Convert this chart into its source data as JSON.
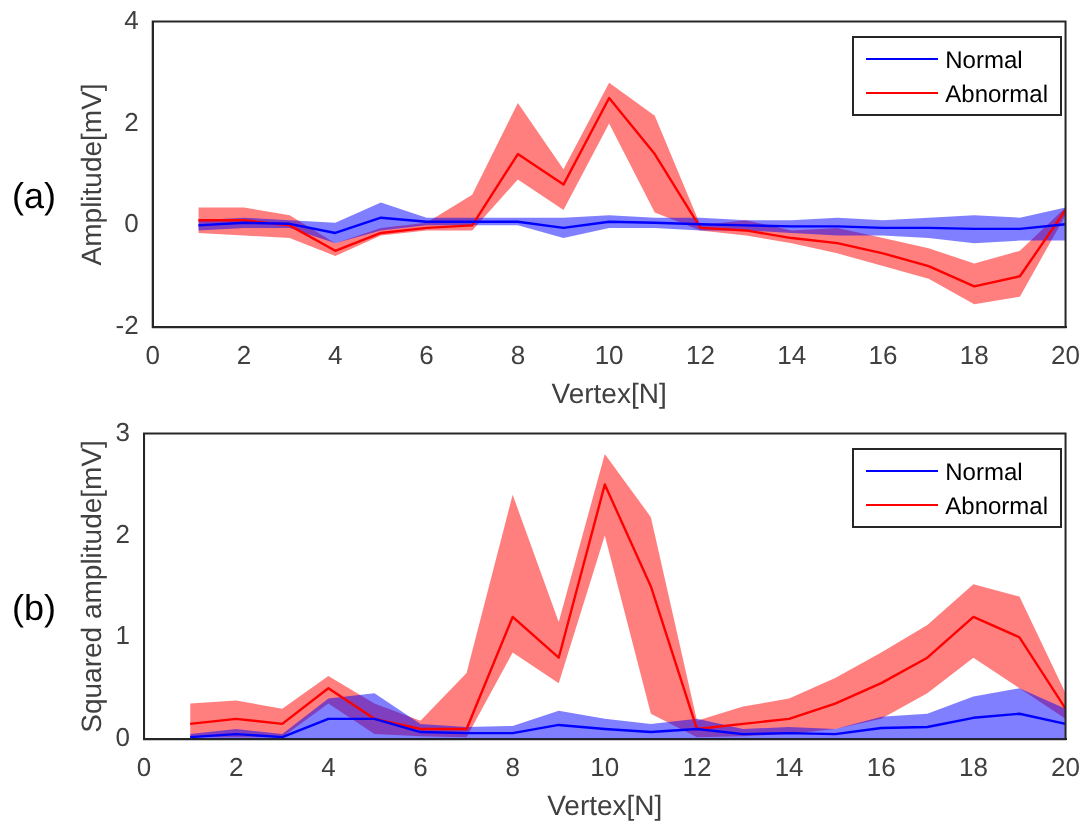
{
  "chart_data": [
    {
      "type": "line",
      "xlabel": "Vertex[N]",
      "ylabel": "Amplitude[mV]",
      "annotations": [
        "(a)"
      ],
      "legend": "top right",
      "x": [
        1,
        2,
        3,
        4,
        5,
        6,
        7,
        8,
        9,
        10,
        11,
        12,
        13,
        14,
        15,
        16,
        17,
        18,
        19,
        20
      ],
      "xlim": [
        0,
        20
      ],
      "xticks": [
        0,
        2,
        4,
        6,
        8,
        10,
        12,
        14,
        16,
        18,
        20
      ],
      "ylim": [
        -2,
        4
      ],
      "yticks": [
        -2,
        0,
        2,
        4
      ],
      "series": [
        {
          "name": "Normal",
          "color": "#0000ff",
          "values": [
            0,
            0.05,
            0.03,
            -0.15,
            0.15,
            0.07,
            0.07,
            0.07,
            -0.05,
            0.07,
            0.05,
            0.02,
            0,
            -0.02,
            -0.02,
            -0.05,
            -0.05,
            -0.07,
            -0.07,
            0.02
          ],
          "lower": [
            -0.1,
            -0.05,
            -0.05,
            -0.35,
            -0.1,
            0,
            0,
            0,
            -0.25,
            -0.05,
            -0.05,
            -0.1,
            -0.1,
            -0.15,
            -0.2,
            -0.2,
            -0.25,
            -0.35,
            -0.3,
            -0.3
          ],
          "upper": [
            0.1,
            0.15,
            0.1,
            0.05,
            0.45,
            0.15,
            0.15,
            0.15,
            0.15,
            0.2,
            0.15,
            0.15,
            0.1,
            0.1,
            0.15,
            0.1,
            0.15,
            0.2,
            0.15,
            0.35
          ]
        },
        {
          "name": "Abnormal",
          "color": "#ff0000",
          "values": [
            0.1,
            0.1,
            0,
            -0.5,
            -0.15,
            -0.05,
            0,
            1.4,
            0.8,
            2.5,
            1.4,
            -0.05,
            -0.1,
            -0.25,
            -0.35,
            -0.55,
            -0.8,
            -1.2,
            -1,
            0.3
          ],
          "lower": [
            -0.15,
            -0.2,
            -0.25,
            -0.6,
            -0.2,
            -0.1,
            -0.1,
            0.9,
            0.3,
            2,
            0.25,
            -0.1,
            -0.2,
            -0.35,
            -0.55,
            -0.8,
            -1.05,
            -1.55,
            -1.4,
            0.2
          ],
          "upper": [
            0.35,
            0.35,
            0.2,
            -0.35,
            -0.05,
            0.05,
            0.6,
            2.4,
            1.1,
            2.8,
            2.15,
            0,
            0.1,
            -0.1,
            -0.05,
            -0.25,
            -0.45,
            -0.75,
            -0.5,
            0.35
          ]
        }
      ]
    },
    {
      "type": "line",
      "xlabel": "Vertex[N]",
      "ylabel": "Squared amplitude[mV]",
      "annotations": [
        "(b)"
      ],
      "legend": "top right",
      "x": [
        1,
        2,
        3,
        4,
        5,
        6,
        7,
        8,
        9,
        10,
        11,
        12,
        13,
        14,
        15,
        16,
        17,
        18,
        19,
        20
      ],
      "xlim": [
        0,
        20
      ],
      "xticks": [
        0,
        2,
        4,
        6,
        8,
        10,
        12,
        14,
        16,
        18,
        20
      ],
      "ylim": [
        0,
        3
      ],
      "yticks": [
        0,
        1,
        2,
        3
      ],
      "series": [
        {
          "name": "Normal",
          "color": "#0000ff",
          "values": [
            0.02,
            0.05,
            0.02,
            0.2,
            0.2,
            0.07,
            0.06,
            0.06,
            0.14,
            0.1,
            0.07,
            0.1,
            0.05,
            0.06,
            0.05,
            0.11,
            0.12,
            0.21,
            0.25,
            0.15
          ],
          "lower": [
            0,
            0,
            0,
            0,
            0,
            0,
            0,
            0,
            0,
            0,
            0,
            0,
            0,
            0,
            0,
            0,
            0,
            0,
            0,
            0
          ],
          "upper": [
            0.05,
            0.1,
            0.05,
            0.4,
            0.45,
            0.15,
            0.12,
            0.13,
            0.28,
            0.2,
            0.15,
            0.2,
            0.1,
            0.12,
            0.1,
            0.22,
            0.25,
            0.42,
            0.5,
            0.3
          ]
        },
        {
          "name": "Abnormal",
          "color": "#ff0000",
          "values": [
            0.15,
            0.2,
            0.15,
            0.5,
            0.2,
            0.1,
            0.1,
            1.2,
            0.8,
            2.5,
            1.5,
            0.1,
            0.15,
            0.2,
            0.35,
            0.55,
            0.8,
            1.2,
            1,
            0.3
          ],
          "lower": [
            0.02,
            0.02,
            0.02,
            0.35,
            0.05,
            0.03,
            0.02,
            0.85,
            0.55,
            2,
            0.25,
            0.02,
            0.03,
            0.05,
            0.1,
            0.2,
            0.45,
            0.8,
            0.5,
            0.2
          ],
          "upper": [
            0.35,
            0.38,
            0.3,
            0.62,
            0.35,
            0.18,
            0.65,
            2.4,
            1.15,
            2.8,
            2.18,
            0.18,
            0.32,
            0.4,
            0.6,
            0.85,
            1.12,
            1.52,
            1.4,
            0.45
          ]
        }
      ]
    }
  ]
}
